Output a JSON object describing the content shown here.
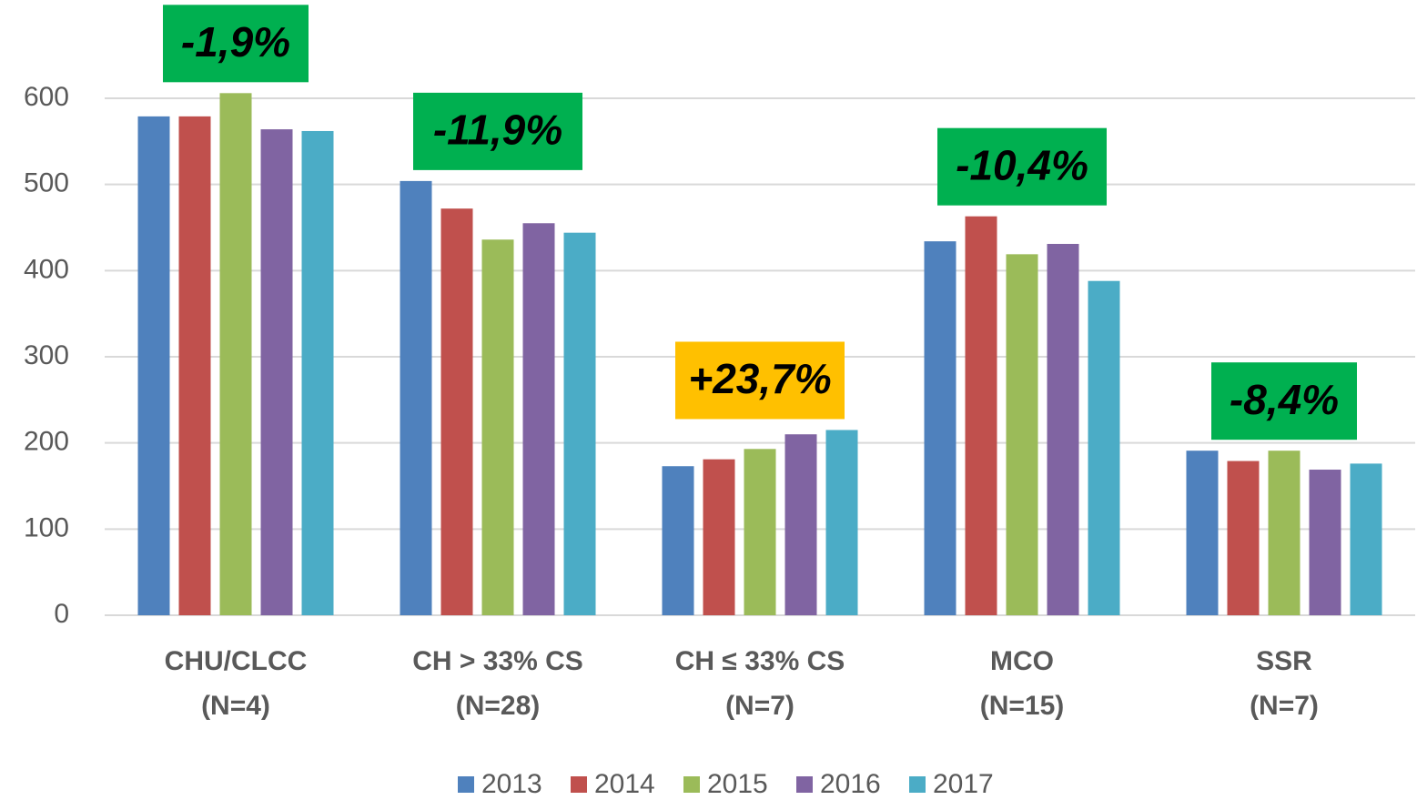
{
  "chart_data": {
    "type": "bar",
    "categories": [
      [
        "CHU/CLCC",
        "(N=4)"
      ],
      [
        "CH > 33% CS",
        "(N=28)"
      ],
      [
        "CH ≤ 33% CS",
        "(N=7)"
      ],
      [
        "MCO",
        "(N=15)"
      ],
      [
        "SSR",
        "(N=7)"
      ]
    ],
    "series": [
      {
        "name": "2013",
        "color": "#4f81bd",
        "values": [
          579,
          504,
          173,
          434,
          191
        ]
      },
      {
        "name": "2014",
        "color": "#c0504d",
        "values": [
          579,
          472,
          181,
          463,
          179
        ]
      },
      {
        "name": "2015",
        "color": "#9bbb59",
        "values": [
          606,
          436,
          193,
          419,
          191
        ]
      },
      {
        "name": "2016",
        "color": "#8064a2",
        "values": [
          564,
          455,
          210,
          431,
          169
        ]
      },
      {
        "name": "2017",
        "color": "#4bacc6",
        "values": [
          562,
          444,
          215,
          388,
          176
        ]
      }
    ],
    "annotations": [
      {
        "text": "-1,9%",
        "color": "#00b050"
      },
      {
        "text": "-11,9%",
        "color": "#00b050"
      },
      {
        "text": "+23,7%",
        "color": "#ffc000"
      },
      {
        "text": "-10,4%",
        "color": "#00b050"
      },
      {
        "text": "-8,4%",
        "color": "#00b050"
      }
    ],
    "ylim": [
      0,
      600
    ],
    "yticks": [
      0,
      100,
      200,
      300,
      400,
      500,
      600
    ],
    "grid": true,
    "legend": "bottom"
  }
}
